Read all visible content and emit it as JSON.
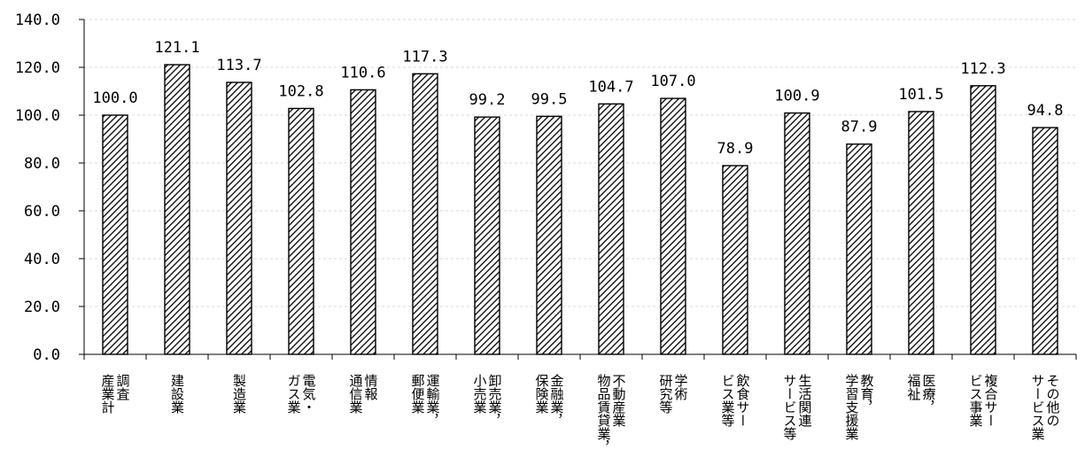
{
  "chart_data": {
    "type": "bar",
    "categories": [
      {
        "name": "調査産業計",
        "columns": [
          "調査",
          "産業計"
        ]
      },
      {
        "name": "建設業",
        "columns": [
          "建設業"
        ]
      },
      {
        "name": "製造業",
        "columns": [
          "製造業"
        ]
      },
      {
        "name": "電気・ガス業",
        "columns": [
          "電気・",
          "ガス業"
        ]
      },
      {
        "name": "情報通信業",
        "columns": [
          "情報",
          "通信業"
        ]
      },
      {
        "name": "運輸業，郵便業",
        "columns": [
          "運輸業，",
          "郵便業"
        ]
      },
      {
        "name": "卸売業，小売業",
        "columns": [
          "卸売業，",
          "小売業"
        ]
      },
      {
        "name": "金融業，保険業",
        "columns": [
          "金融業，",
          "保険業"
        ]
      },
      {
        "name": "不動産業，物品賃貸業",
        "columns": [
          "不動産業",
          "物品賃貸業，"
        ]
      },
      {
        "name": "学術研究等",
        "columns": [
          "学術",
          "研究等"
        ]
      },
      {
        "name": "飲食サービス業等",
        "columns": [
          "飲食サー",
          "ビス業等"
        ]
      },
      {
        "name": "生活関連サービス等",
        "columns": [
          "生活関連",
          "サービス等"
        ]
      },
      {
        "name": "教育，学習支援業",
        "columns": [
          "教育，",
          "学習支援業"
        ]
      },
      {
        "name": "医療，福祉",
        "columns": [
          "医療，",
          "福祉"
        ]
      },
      {
        "name": "複合サービス事業",
        "columns": [
          "複合サー",
          "ビス事業"
        ]
      },
      {
        "name": "その他のサービス業",
        "columns": [
          "その他の",
          "サービス業"
        ]
      }
    ],
    "values": [
      100.0,
      121.1,
      113.7,
      102.8,
      110.6,
      117.3,
      99.2,
      99.5,
      104.7,
      107.0,
      78.9,
      100.9,
      87.9,
      101.5,
      112.3,
      94.8
    ],
    "value_labels": [
      "100.0",
      "121.1",
      "113.7",
      "102.8",
      "110.6",
      "117.3",
      "99.2",
      "99.5",
      "104.7",
      "107.0",
      "78.9",
      "100.9",
      "87.9",
      "101.5",
      "112.3",
      "94.8"
    ],
    "ylim": [
      0,
      140
    ],
    "yticks": [
      "0.0",
      "20.0",
      "40.0",
      "60.0",
      "80.0",
      "100.0",
      "120.0",
      "140.0"
    ],
    "ytick_values": [
      0,
      20,
      40,
      60,
      80,
      100,
      120,
      140
    ],
    "grid": true,
    "bar_fill": "diagonal-hatch",
    "colors": {
      "hatch": "#000000",
      "bar_background": "#ffffff",
      "grid": "#d9d9d9",
      "axis": "#000000"
    }
  }
}
